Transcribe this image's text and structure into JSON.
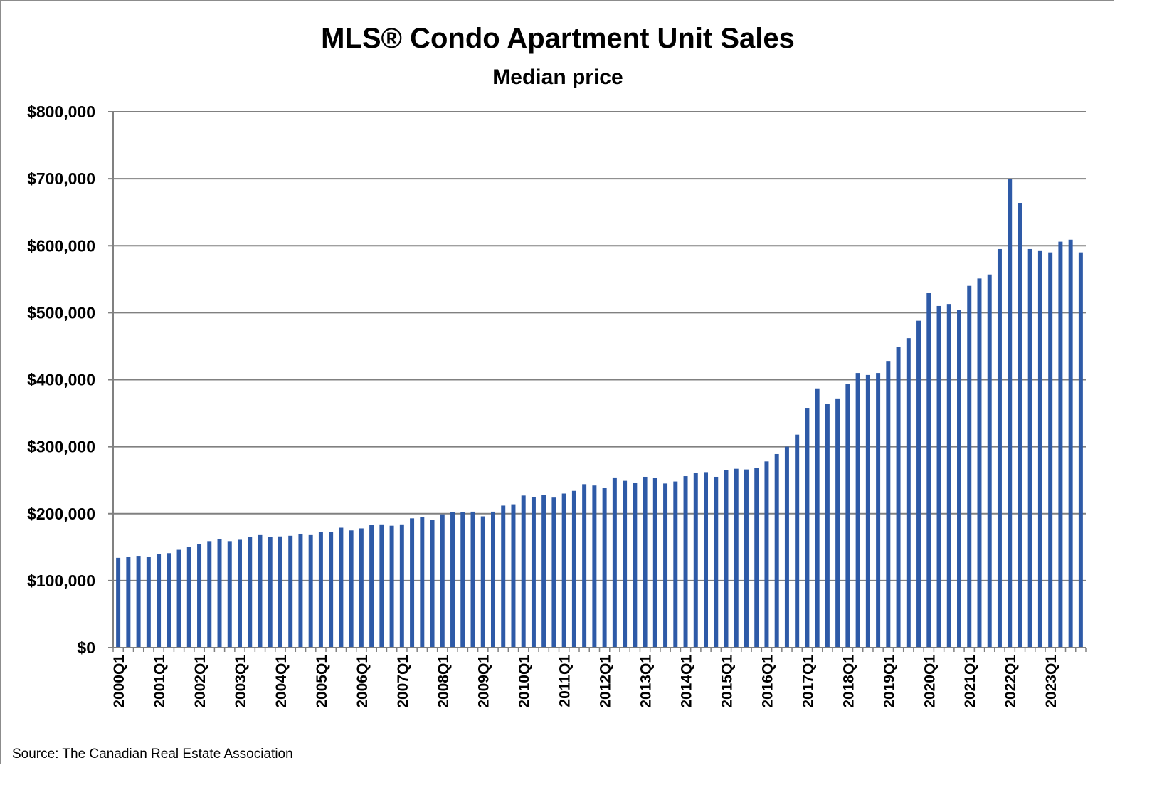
{
  "chart_data": {
    "type": "bar",
    "title": "MLS® Condo Apartment Unit Sales",
    "subtitle": "Median price",
    "xlabel": "",
    "ylabel": "",
    "ylim": [
      0,
      800000
    ],
    "yticks": [
      0,
      100000,
      200000,
      300000,
      400000,
      500000,
      600000,
      700000,
      800000
    ],
    "ytick_labels": [
      "$0",
      "$100,000",
      "$200,000",
      "$300,000",
      "$400,000",
      "$500,000",
      "$600,000",
      "$700,000",
      "$800,000"
    ],
    "xtick_labels": [
      "2000Q1",
      "2001Q1",
      "2002Q1",
      "2003Q1",
      "2004Q1",
      "2005Q1",
      "2006Q1",
      "2007Q1",
      "2008Q1",
      "2009Q1",
      "2010Q1",
      "2011Q1",
      "2012Q1",
      "2013Q1",
      "2014Q1",
      "2015Q1",
      "2016Q1",
      "2017Q1",
      "2018Q1",
      "2019Q1",
      "2020Q1",
      "2021Q1",
      "2022Q1",
      "2023Q1"
    ],
    "grid": true,
    "bar_color": "#2E5AA7",
    "categories_start": "2000Q1",
    "categories_end": "2023Q4",
    "values": [
      134000,
      135000,
      137000,
      135000,
      140000,
      141000,
      146000,
      150000,
      155000,
      159000,
      162000,
      159000,
      161000,
      165000,
      168000,
      165000,
      166000,
      167000,
      170000,
      168000,
      173000,
      173000,
      179000,
      175000,
      178000,
      183000,
      184000,
      182000,
      184000,
      193000,
      195000,
      191000,
      199000,
      202000,
      202000,
      203000,
      196000,
      203000,
      212000,
      214000,
      227000,
      225000,
      228000,
      224000,
      230000,
      234000,
      244000,
      242000,
      239000,
      254000,
      249000,
      246000,
      255000,
      253000,
      245000,
      248000,
      256000,
      261000,
      262000,
      255000,
      265000,
      267000,
      266000,
      268000,
      278000,
      289000,
      300000,
      318000,
      358000,
      387000,
      364000,
      372000,
      394000,
      410000,
      407000,
      410000,
      428000,
      449000,
      462000,
      488000,
      530000,
      510000,
      513000,
      504000,
      540000,
      551000,
      557000,
      595000,
      700000,
      664000,
      595000,
      593000,
      590000,
      606000,
      609000,
      590000
    ]
  },
  "source": "Source: The Canadian Real Estate Association"
}
